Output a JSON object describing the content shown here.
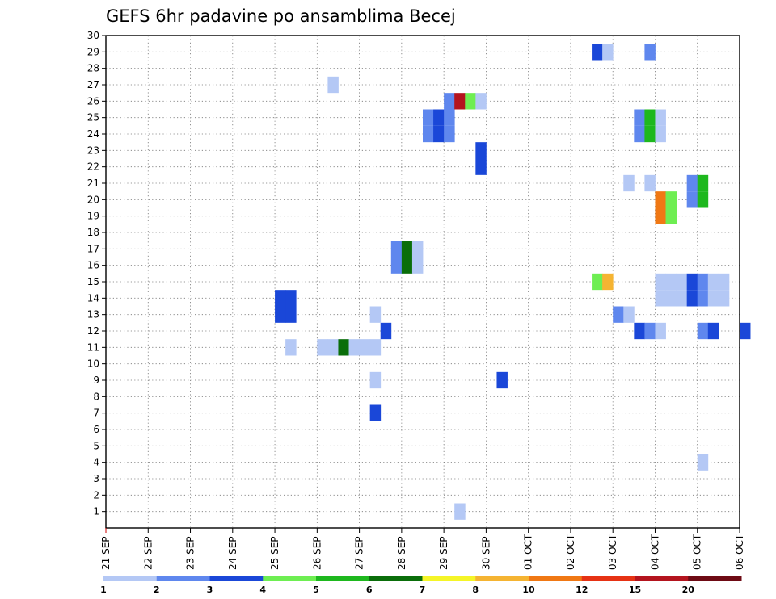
{
  "chart_data": {
    "type": "heatmap",
    "title": "GEFS 6hr padavine po ansamblima Becej",
    "xlabel": "",
    "ylabel": "",
    "x_range": [
      "2023-09-21 00:00",
      "2023-10-06 00:00"
    ],
    "x_step_hours": 6,
    "x_tick_labels": [
      "21 SEP",
      "22 SEP",
      "23 SEP",
      "24 SEP",
      "25 SEP",
      "26 SEP",
      "27 SEP",
      "28 SEP",
      "29 SEP",
      "30 SEP",
      "01 OCT",
      "02 OCT",
      "03 OCT",
      "04 OCT",
      "05 OCT",
      "06 OCT"
    ],
    "y_members": [
      1,
      30
    ],
    "y_tick_labels": [
      "1",
      "2",
      "3",
      "4",
      "5",
      "6",
      "7",
      "8",
      "9",
      "10",
      "11",
      "12",
      "13",
      "14",
      "15",
      "16",
      "17",
      "18",
      "19",
      "20",
      "21",
      "22",
      "23",
      "24",
      "25",
      "26",
      "27",
      "28",
      "29",
      "30"
    ],
    "grid": true,
    "colorbar": {
      "placement": "bottom",
      "levels": [
        1,
        2,
        3,
        4,
        5,
        6,
        7,
        8,
        10,
        12,
        15,
        20
      ],
      "colors": [
        "#b4c8f5",
        "#5f87ee",
        "#1a47d8",
        "#6eee52",
        "#1eb81e",
        "#0a6e0a",
        "#f5f528",
        "#f5b432",
        "#f07814",
        "#e63214",
        "#b4141e",
        "#6e0a14"
      ]
    },
    "cells": [
      {
        "member": 1,
        "time": "29 SEP 06",
        "value": 1.5
      },
      {
        "member": 4,
        "time": "05 OCT 00",
        "value": 1.5
      },
      {
        "member": 7,
        "time": "27 SEP 06",
        "value": 3.5
      },
      {
        "member": 9,
        "time": "27 SEP 06",
        "value": 1.5
      },
      {
        "member": 9,
        "time": "30 SEP 06",
        "value": 3.5
      },
      {
        "member": 11,
        "time": "25 SEP 06",
        "value": 1.5
      },
      {
        "member": 11,
        "time": "26 SEP 00",
        "value": 1.5
      },
      {
        "member": 11,
        "time": "26 SEP 06",
        "value": 1.5
      },
      {
        "member": 11,
        "time": "26 SEP 12",
        "value": 6.5
      },
      {
        "member": 11,
        "time": "26 SEP 18",
        "value": 1.5
      },
      {
        "member": 11,
        "time": "27 SEP 00",
        "value": 1.5
      },
      {
        "member": 11,
        "time": "27 SEP 06",
        "value": 1.5
      },
      {
        "member": 12,
        "time": "27 SEP 12",
        "value": 3.5
      },
      {
        "member": 12,
        "time": "03 OCT 12",
        "value": 3.5
      },
      {
        "member": 12,
        "time": "03 OCT 18",
        "value": 2.5
      },
      {
        "member": 12,
        "time": "04 OCT 00",
        "value": 1.5
      },
      {
        "member": 12,
        "time": "05 OCT 00",
        "value": 2.5
      },
      {
        "member": 12,
        "time": "05 OCT 06",
        "value": 3.5
      },
      {
        "member": 12,
        "time": "06 OCT 00",
        "value": 3.5
      },
      {
        "member": 13,
        "time": "25 SEP 00",
        "value": 3.5
      },
      {
        "member": 13,
        "time": "25 SEP 06",
        "value": 3.5
      },
      {
        "member": 13,
        "time": "27 SEP 06",
        "value": 1.5
      },
      {
        "member": 13,
        "time": "03 OCT 00",
        "value": 2.5
      },
      {
        "member": 13,
        "time": "03 OCT 06",
        "value": 1.5
      },
      {
        "member": 14,
        "time": "25 SEP 00",
        "value": 3.5
      },
      {
        "member": 14,
        "time": "25 SEP 06",
        "value": 3.5
      },
      {
        "member": 14,
        "time": "04 OCT 00",
        "value": 1.5
      },
      {
        "member": 14,
        "time": "04 OCT 06",
        "value": 1.5
      },
      {
        "member": 14,
        "time": "04 OCT 12",
        "value": 1.5
      },
      {
        "member": 14,
        "time": "04 OCT 18",
        "value": 3.5
      },
      {
        "member": 14,
        "time": "05 OCT 00",
        "value": 2.5
      },
      {
        "member": 14,
        "time": "05 OCT 06",
        "value": 1.5
      },
      {
        "member": 14,
        "time": "05 OCT 12",
        "value": 1.5
      },
      {
        "member": 15,
        "time": "02 OCT 12",
        "value": 4.5
      },
      {
        "member": 15,
        "time": "02 OCT 18",
        "value": 9
      },
      {
        "member": 15,
        "time": "04 OCT 00",
        "value": 1.5
      },
      {
        "member": 15,
        "time": "04 OCT 06",
        "value": 1.5
      },
      {
        "member": 15,
        "time": "04 OCT 12",
        "value": 1.5
      },
      {
        "member": 15,
        "time": "04 OCT 18",
        "value": 3.5
      },
      {
        "member": 15,
        "time": "05 OCT 00",
        "value": 2.5
      },
      {
        "member": 15,
        "time": "05 OCT 06",
        "value": 1.5
      },
      {
        "member": 15,
        "time": "05 OCT 12",
        "value": 1.5
      },
      {
        "member": 16,
        "time": "27 SEP 18",
        "value": 2.5
      },
      {
        "member": 16,
        "time": "28 SEP 00",
        "value": 6.5
      },
      {
        "member": 16,
        "time": "28 SEP 06",
        "value": 1.5
      },
      {
        "member": 17,
        "time": "27 SEP 18",
        "value": 2.5
      },
      {
        "member": 17,
        "time": "28 SEP 00",
        "value": 6.5
      },
      {
        "member": 17,
        "time": "28 SEP 06",
        "value": 1.5
      },
      {
        "member": 19,
        "time": "04 OCT 00",
        "value": 11
      },
      {
        "member": 19,
        "time": "04 OCT 06",
        "value": 4.5
      },
      {
        "member": 20,
        "time": "04 OCT 00",
        "value": 11
      },
      {
        "member": 20,
        "time": "04 OCT 06",
        "value": 4.5
      },
      {
        "member": 20,
        "time": "04 OCT 18",
        "value": 2.5
      },
      {
        "member": 20,
        "time": "05 OCT 00",
        "value": 5.5
      },
      {
        "member": 21,
        "time": "03 OCT 06",
        "value": 1.5
      },
      {
        "member": 21,
        "time": "03 OCT 18",
        "value": 1.5
      },
      {
        "member": 21,
        "time": "04 OCT 18",
        "value": 2.5
      },
      {
        "member": 21,
        "time": "05 OCT 00",
        "value": 5.5
      },
      {
        "member": 22,
        "time": "29 SEP 18",
        "value": 3.5
      },
      {
        "member": 23,
        "time": "29 SEP 18",
        "value": 3.5
      },
      {
        "member": 24,
        "time": "28 SEP 12",
        "value": 2.5
      },
      {
        "member": 24,
        "time": "28 SEP 18",
        "value": 3.5
      },
      {
        "member": 24,
        "time": "29 SEP 00",
        "value": 2.5
      },
      {
        "member": 24,
        "time": "03 OCT 12",
        "value": 2.5
      },
      {
        "member": 24,
        "time": "03 OCT 18",
        "value": 5.5
      },
      {
        "member": 24,
        "time": "04 OCT 00",
        "value": 1.5
      },
      {
        "member": 25,
        "time": "28 SEP 12",
        "value": 2.5
      },
      {
        "member": 25,
        "time": "28 SEP 18",
        "value": 3.5
      },
      {
        "member": 25,
        "time": "29 SEP 00",
        "value": 2.5
      },
      {
        "member": 25,
        "time": "03 OCT 12",
        "value": 2.5
      },
      {
        "member": 25,
        "time": "03 OCT 18",
        "value": 5.5
      },
      {
        "member": 25,
        "time": "04 OCT 00",
        "value": 1.5
      },
      {
        "member": 26,
        "time": "29 SEP 00",
        "value": 2.5
      },
      {
        "member": 26,
        "time": "29 SEP 06",
        "value": 17
      },
      {
        "member": 26,
        "time": "29 SEP 12",
        "value": 4.5
      },
      {
        "member": 26,
        "time": "29 SEP 18",
        "value": 1.5
      },
      {
        "member": 27,
        "time": "26 SEP 06",
        "value": 1.5
      },
      {
        "member": 29,
        "time": "02 OCT 12",
        "value": 3.5
      },
      {
        "member": 29,
        "time": "02 OCT 18",
        "value": 1.5
      },
      {
        "member": 29,
        "time": "03 OCT 18",
        "value": 2.5
      }
    ]
  }
}
